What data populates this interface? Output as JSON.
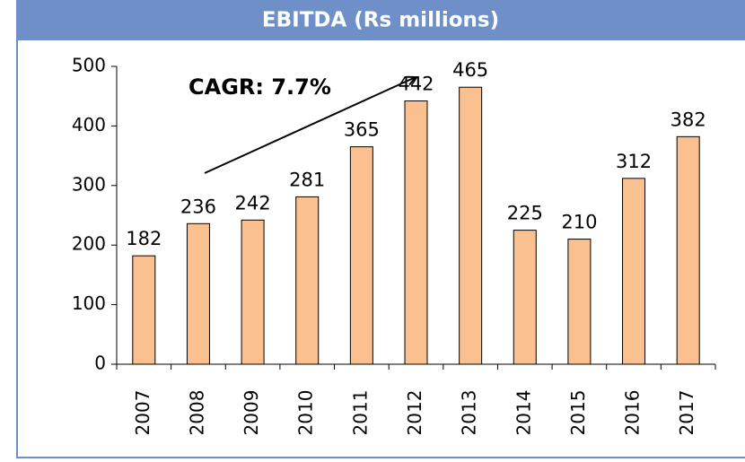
{
  "chart_data": {
    "type": "bar",
    "title": "EBITDA (Rs millions)",
    "categories": [
      "2007",
      "2008",
      "2009",
      "2010",
      "2011",
      "2012",
      "2013",
      "2014",
      "2015",
      "2016",
      "2017"
    ],
    "values": [
      182,
      236,
      242,
      281,
      365,
      442,
      465,
      225,
      210,
      312,
      382
    ],
    "color": "#fac090",
    "ylim": [
      0,
      500
    ],
    "yticks": [
      0,
      100,
      200,
      300,
      400,
      500
    ],
    "annotations": [
      "CAGR: 7.7%"
    ]
  }
}
